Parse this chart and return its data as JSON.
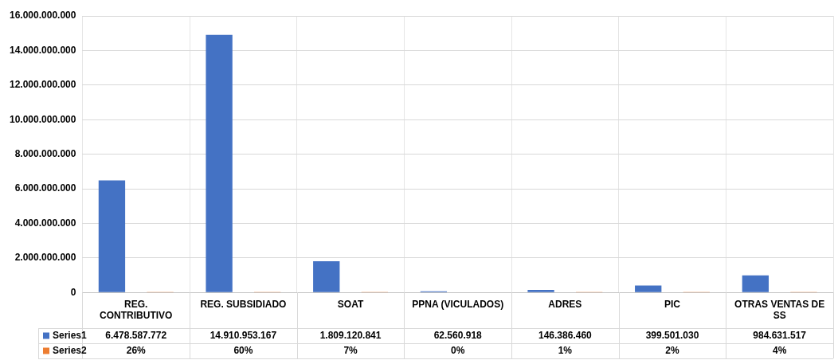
{
  "chart_data": {
    "type": "bar",
    "categories": [
      "REG. CONTRIBUTIVO",
      "REG. SUBSIDIADO",
      "SOAT",
      "PPNA (VICULADOS)",
      "ADRES",
      "PIC",
      "OTRAS VENTAS DE SS"
    ],
    "series": [
      {
        "name": "Series1",
        "color": "#4472c4",
        "values": [
          6478587772,
          14910953167,
          1809120841,
          62560918,
          146386460,
          399501030,
          984631517
        ],
        "value_labels": [
          "6.478.587.772",
          "14.910.953.167",
          "1.809.120.841",
          "62.560.918",
          "146.386.460",
          "399.501.030",
          "984.631.517"
        ]
      },
      {
        "name": "Series2",
        "color": "#ed7d31",
        "values": [
          0.26,
          0.6,
          0.07,
          0,
          0.01,
          0.02,
          0.04
        ],
        "value_labels": [
          "26%",
          "60%",
          "7%",
          "0%",
          "1%",
          "2%",
          "4%"
        ]
      }
    ],
    "ylim": [
      0,
      16000000000
    ],
    "yticks": [
      0,
      {
        "value": 2000000000,
        "label": "2.000.000.000"
      },
      {
        "value": 4000000000,
        "label": "4.000.000.000"
      },
      {
        "value": 6000000000,
        "label": "6.000.000.000"
      },
      {
        "value": 8000000000,
        "label": "8.000.000.000"
      },
      {
        "value": 10000000000,
        "label": "10.000.000.000"
      },
      {
        "value": 12000000000,
        "label": "12.000.000.000"
      },
      {
        "value": 14000000000,
        "label": "14.000.000.000"
      },
      {
        "value": 16000000000,
        "label": "16.000.000.000"
      }
    ],
    "grid": true,
    "legend": "bottom"
  }
}
